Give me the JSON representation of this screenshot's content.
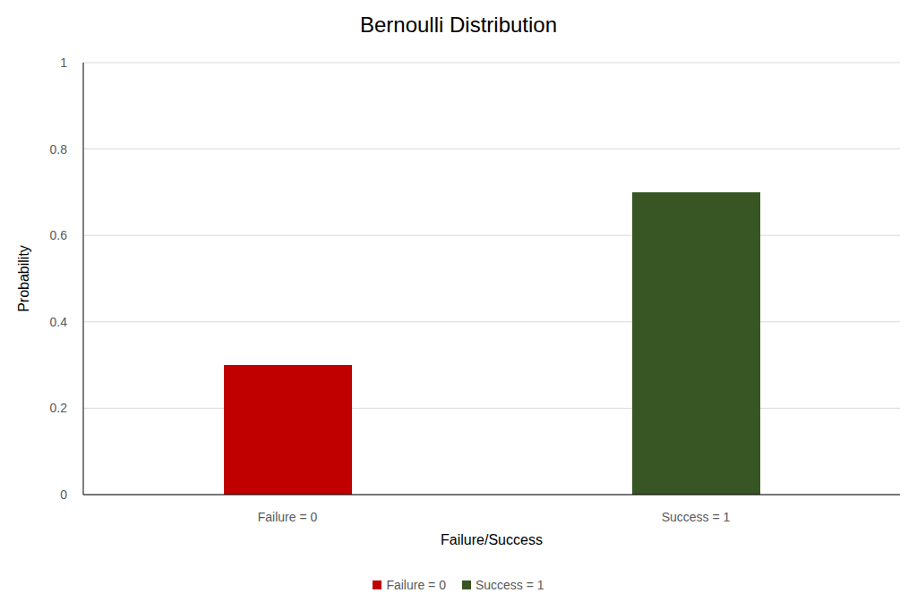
{
  "chart_data": {
    "type": "bar",
    "title": "Bernoulli Distribution",
    "x_label": "Failure/Success",
    "y_label": "Probability",
    "categories": [
      "Failure = 0",
      "Success = 1"
    ],
    "values": [
      0.3,
      0.7
    ],
    "colors": [
      "#c00000",
      "#375623"
    ],
    "ylim": [
      0,
      1
    ],
    "yticks": [
      0,
      0.2,
      0.4,
      0.6,
      0.8,
      1
    ],
    "grid": true,
    "legend": "bottom"
  }
}
